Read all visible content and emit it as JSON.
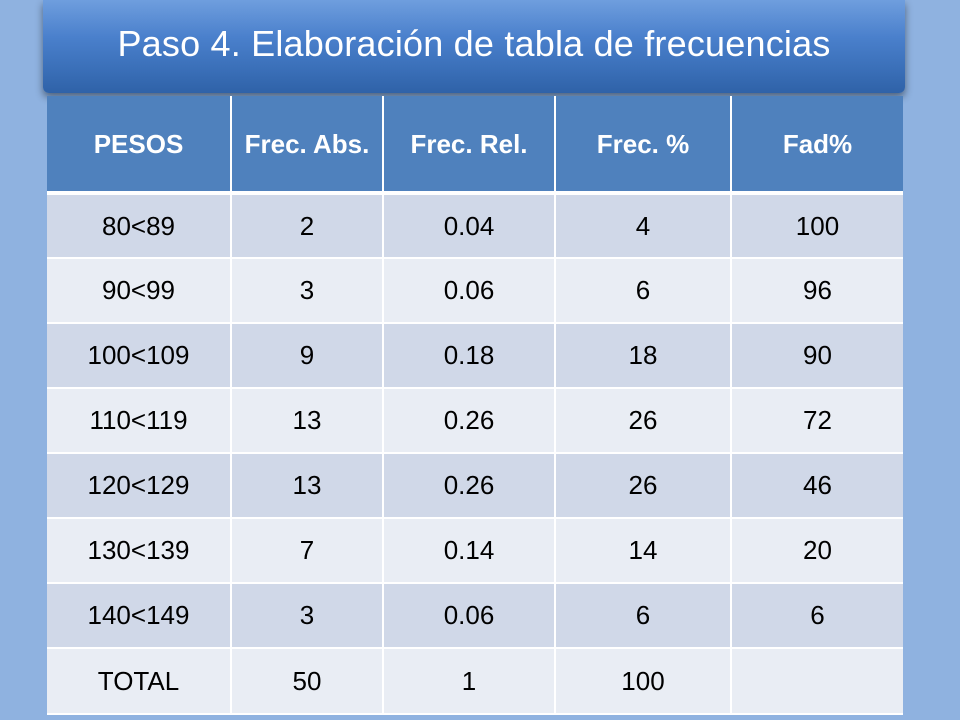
{
  "slide": {
    "title": "Paso 4. Elaboración de tabla de frecuencias"
  },
  "table": {
    "headers": [
      "PESOS",
      "Frec. Abs.",
      "Frec. Rel.",
      "Frec. %",
      "Fad%"
    ],
    "rows": [
      [
        "80<89",
        "2",
        "0.04",
        "4",
        "100"
      ],
      [
        "90<99",
        "3",
        "0.06",
        "6",
        "96"
      ],
      [
        "100<109",
        "9",
        "0.18",
        "18",
        "90"
      ],
      [
        "110<119",
        "13",
        "0.26",
        "26",
        "72"
      ],
      [
        "120<129",
        "13",
        "0.26",
        "26",
        "46"
      ],
      [
        "130<139",
        "7",
        "0.14",
        "14",
        "20"
      ],
      [
        "140<149",
        "3",
        "0.06",
        "6",
        "6"
      ],
      [
        "TOTAL",
        "50",
        "1",
        "100",
        ""
      ]
    ]
  },
  "colors": {
    "background": "#8fb2e0",
    "header_fill": "#4f81bd",
    "row_band_dark": "#d0d8e8",
    "row_band_light": "#e9edf4"
  }
}
